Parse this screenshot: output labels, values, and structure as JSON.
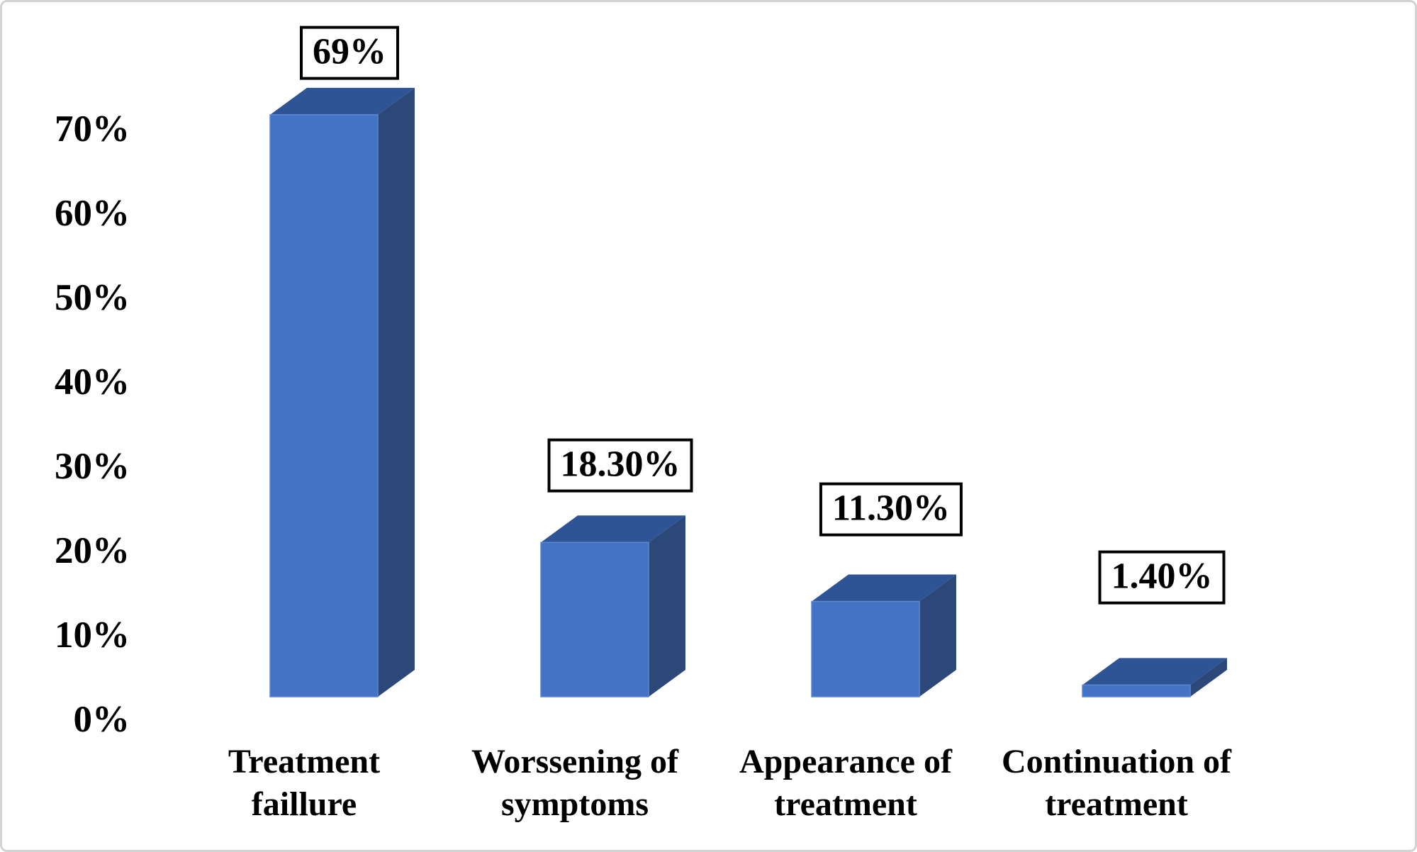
{
  "chart_data": {
    "type": "bar",
    "variant": "3d-column",
    "title": "",
    "xlabel": "",
    "ylabel": "",
    "legend": "none",
    "grid": "off",
    "background": "#FFFFFF",
    "ylim": [
      0,
      70
    ],
    "categories": [
      [
        "Treatment",
        "faillure"
      ],
      [
        "Worssening of",
        "symptoms"
      ],
      [
        "Appearance of",
        "treatment"
      ],
      [
        "Continuation of",
        "treatment"
      ]
    ],
    "values": [
      69,
      18.3,
      11.3,
      1.4
    ],
    "data_labels": [
      "69%",
      "18.30%",
      "11.30%",
      "1.40%"
    ],
    "y_tick_labels": [
      "0%",
      "10%",
      "20%",
      "30%",
      "40%",
      "50%",
      "60%",
      "70%"
    ],
    "y_tick_values": [
      0,
      10,
      20,
      30,
      40,
      50,
      60,
      70
    ],
    "colors": {
      "bar_front": "#4472C4",
      "bar_top": "#2F5496",
      "bar_side": "#2B4879",
      "data_label_border": "#000000",
      "data_label_bg": "#FFFFFF",
      "text": "#000000",
      "frame_border": "#D3D3D3"
    }
  }
}
